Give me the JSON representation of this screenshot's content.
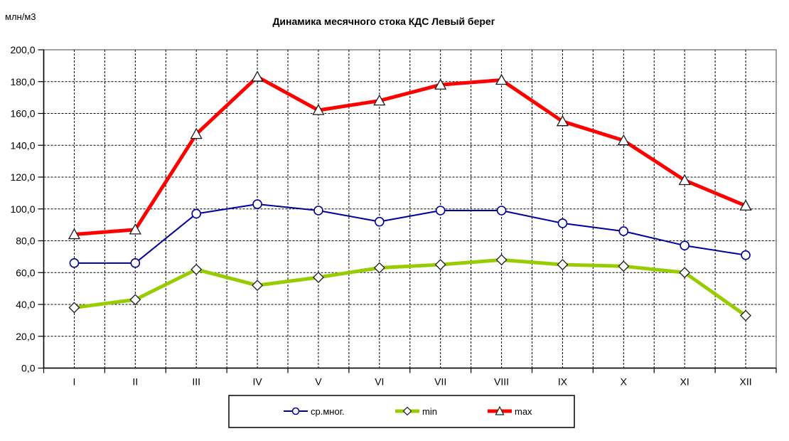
{
  "chart_data": {
    "type": "line",
    "title": "Динамика месячного стока КДС Левый берег",
    "ylabel": "млн/м3",
    "categories": [
      "I",
      "II",
      "III",
      "IV",
      "V",
      "VI",
      "VII",
      "VIII",
      "IX",
      "X",
      "XI",
      "XII"
    ],
    "series": [
      {
        "name": "ср.мног.",
        "color": "#000099",
        "marker": "circle",
        "line_width": 2,
        "values": [
          66,
          66,
          97,
          103,
          99,
          92,
          99,
          99,
          91,
          86,
          77,
          71
        ]
      },
      {
        "name": "min",
        "color": "#99CC00",
        "marker": "diamond",
        "line_width": 5,
        "values": [
          38,
          43,
          62,
          52,
          57,
          63,
          65,
          68,
          65,
          64,
          60,
          33
        ]
      },
      {
        "name": "max",
        "color": "#FF0000",
        "marker": "triangle",
        "line_width": 5,
        "values": [
          84,
          87,
          147,
          183,
          162,
          168,
          178,
          181,
          155,
          143,
          118,
          102
        ]
      }
    ],
    "ylim": [
      0,
      200
    ],
    "y_tick_step": 20,
    "y_tick_labels": [
      "0,0",
      "20,0",
      "40,0",
      "60,0",
      "80,0",
      "100,0",
      "120,0",
      "140,0",
      "160,0",
      "180,0",
      "200,0"
    ],
    "grid": true,
    "legend_position": "bottom"
  },
  "colors": {
    "plot_border": "#808080",
    "gridline": "#000000",
    "axis": "#000000",
    "marker_fill": "#FFFFFF",
    "marker_outline": "#1a1a1a",
    "text": "#000000",
    "legend_border": "#000000"
  }
}
